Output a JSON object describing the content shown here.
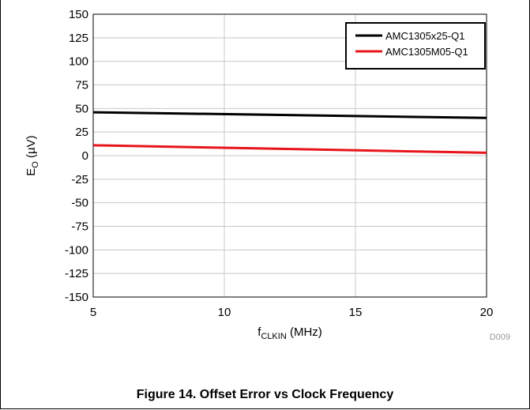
{
  "chart_data": {
    "type": "line",
    "xlabel": {
      "main": "f",
      "sub": "CLKIN",
      "unit": " (MHz)"
    },
    "ylabel": {
      "main": "E",
      "sub": "O",
      "unit": " (µV)"
    },
    "xlim": [
      5,
      20
    ],
    "ylim": [
      -150,
      150
    ],
    "xticks": [
      5,
      10,
      15,
      20
    ],
    "yticks": [
      150,
      125,
      100,
      75,
      50,
      25,
      0,
      -25,
      -50,
      -75,
      -100,
      -125,
      -150
    ],
    "grid": true,
    "legend_position": "top-right",
    "series": [
      {
        "name": "AMC1305x25-Q1",
        "color": "#000000",
        "x": [
          5,
          20
        ],
        "y": [
          46,
          40
        ]
      },
      {
        "name": "AMC1305M05-Q1",
        "color": "#e8141b",
        "x": [
          5,
          20
        ],
        "y": [
          11,
          3
        ]
      }
    ],
    "figure_code": "D009"
  },
  "caption": "Figure 14. Offset Error vs Clock Frequency"
}
